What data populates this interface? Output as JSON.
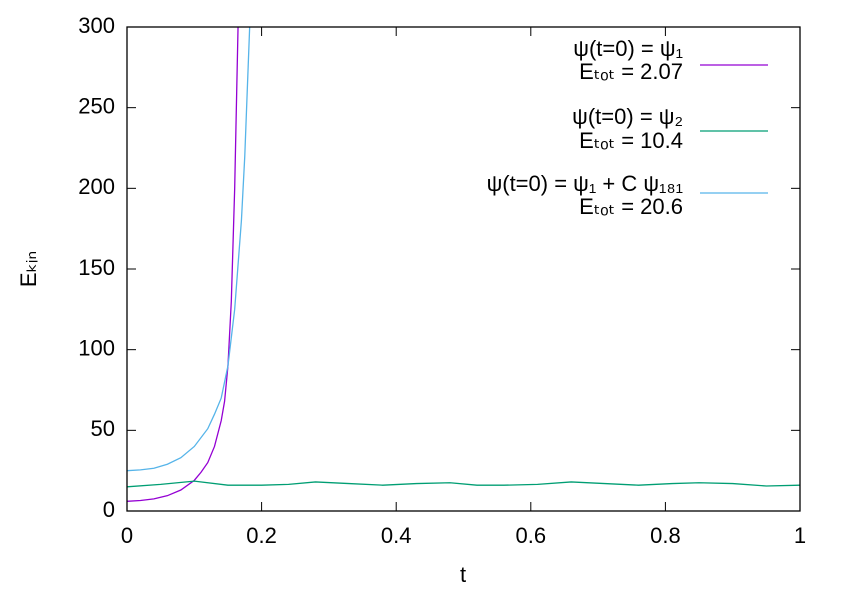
{
  "chart_data": {
    "type": "line",
    "xlabel": "t",
    "ylabel": "Eₖᵢₙ",
    "xlim": [
      0,
      1
    ],
    "ylim": [
      0,
      300
    ],
    "xticks": [
      0,
      0.2,
      0.4,
      0.6,
      0.8,
      1
    ],
    "yticks": [
      0,
      50,
      100,
      150,
      200,
      250,
      300
    ],
    "series": [
      {
        "name": "ψ(t=0) = ψ₁",
        "energy_label": "Eₜₒₜ  = 2.07",
        "color": "#9400d3",
        "x": [
          0,
          0.02,
          0.04,
          0.06,
          0.08,
          0.1,
          0.11,
          0.12,
          0.13,
          0.14,
          0.145,
          0.15,
          0.155,
          0.16,
          0.163,
          0.166
        ],
        "values": [
          6,
          6.5,
          7.5,
          9.5,
          13,
          19,
          24,
          30,
          40,
          56,
          68,
          90,
          130,
          200,
          260,
          320
        ]
      },
      {
        "name": "ψ(t=0) = ψ₂",
        "energy_label": "Eₜₒₜ  = 10.4",
        "color": "#009e73",
        "x": [
          0,
          0.05,
          0.1,
          0.15,
          0.2,
          0.24,
          0.28,
          0.33,
          0.38,
          0.43,
          0.48,
          0.52,
          0.56,
          0.61,
          0.66,
          0.71,
          0.76,
          0.81,
          0.85,
          0.9,
          0.95,
          1
        ],
        "values": [
          15,
          16.5,
          18.5,
          16,
          16,
          16.5,
          18,
          17,
          16,
          17,
          17.5,
          16,
          16,
          16.5,
          18,
          17,
          16,
          17,
          17.5,
          17,
          15.5,
          16
        ]
      },
      {
        "name": "ψ(t=0) = ψ₁ + C ψ₁₈₁",
        "energy_label": "Eₜₒₜ  = 20.6",
        "color": "#56b4e9",
        "x": [
          0,
          0.02,
          0.04,
          0.06,
          0.08,
          0.1,
          0.12,
          0.13,
          0.14,
          0.15,
          0.16,
          0.17,
          0.175,
          0.18,
          0.185
        ],
        "values": [
          25,
          25.5,
          26.5,
          29,
          33,
          40,
          51,
          60,
          70,
          90,
          125,
          180,
          220,
          275,
          330
        ]
      }
    ]
  }
}
